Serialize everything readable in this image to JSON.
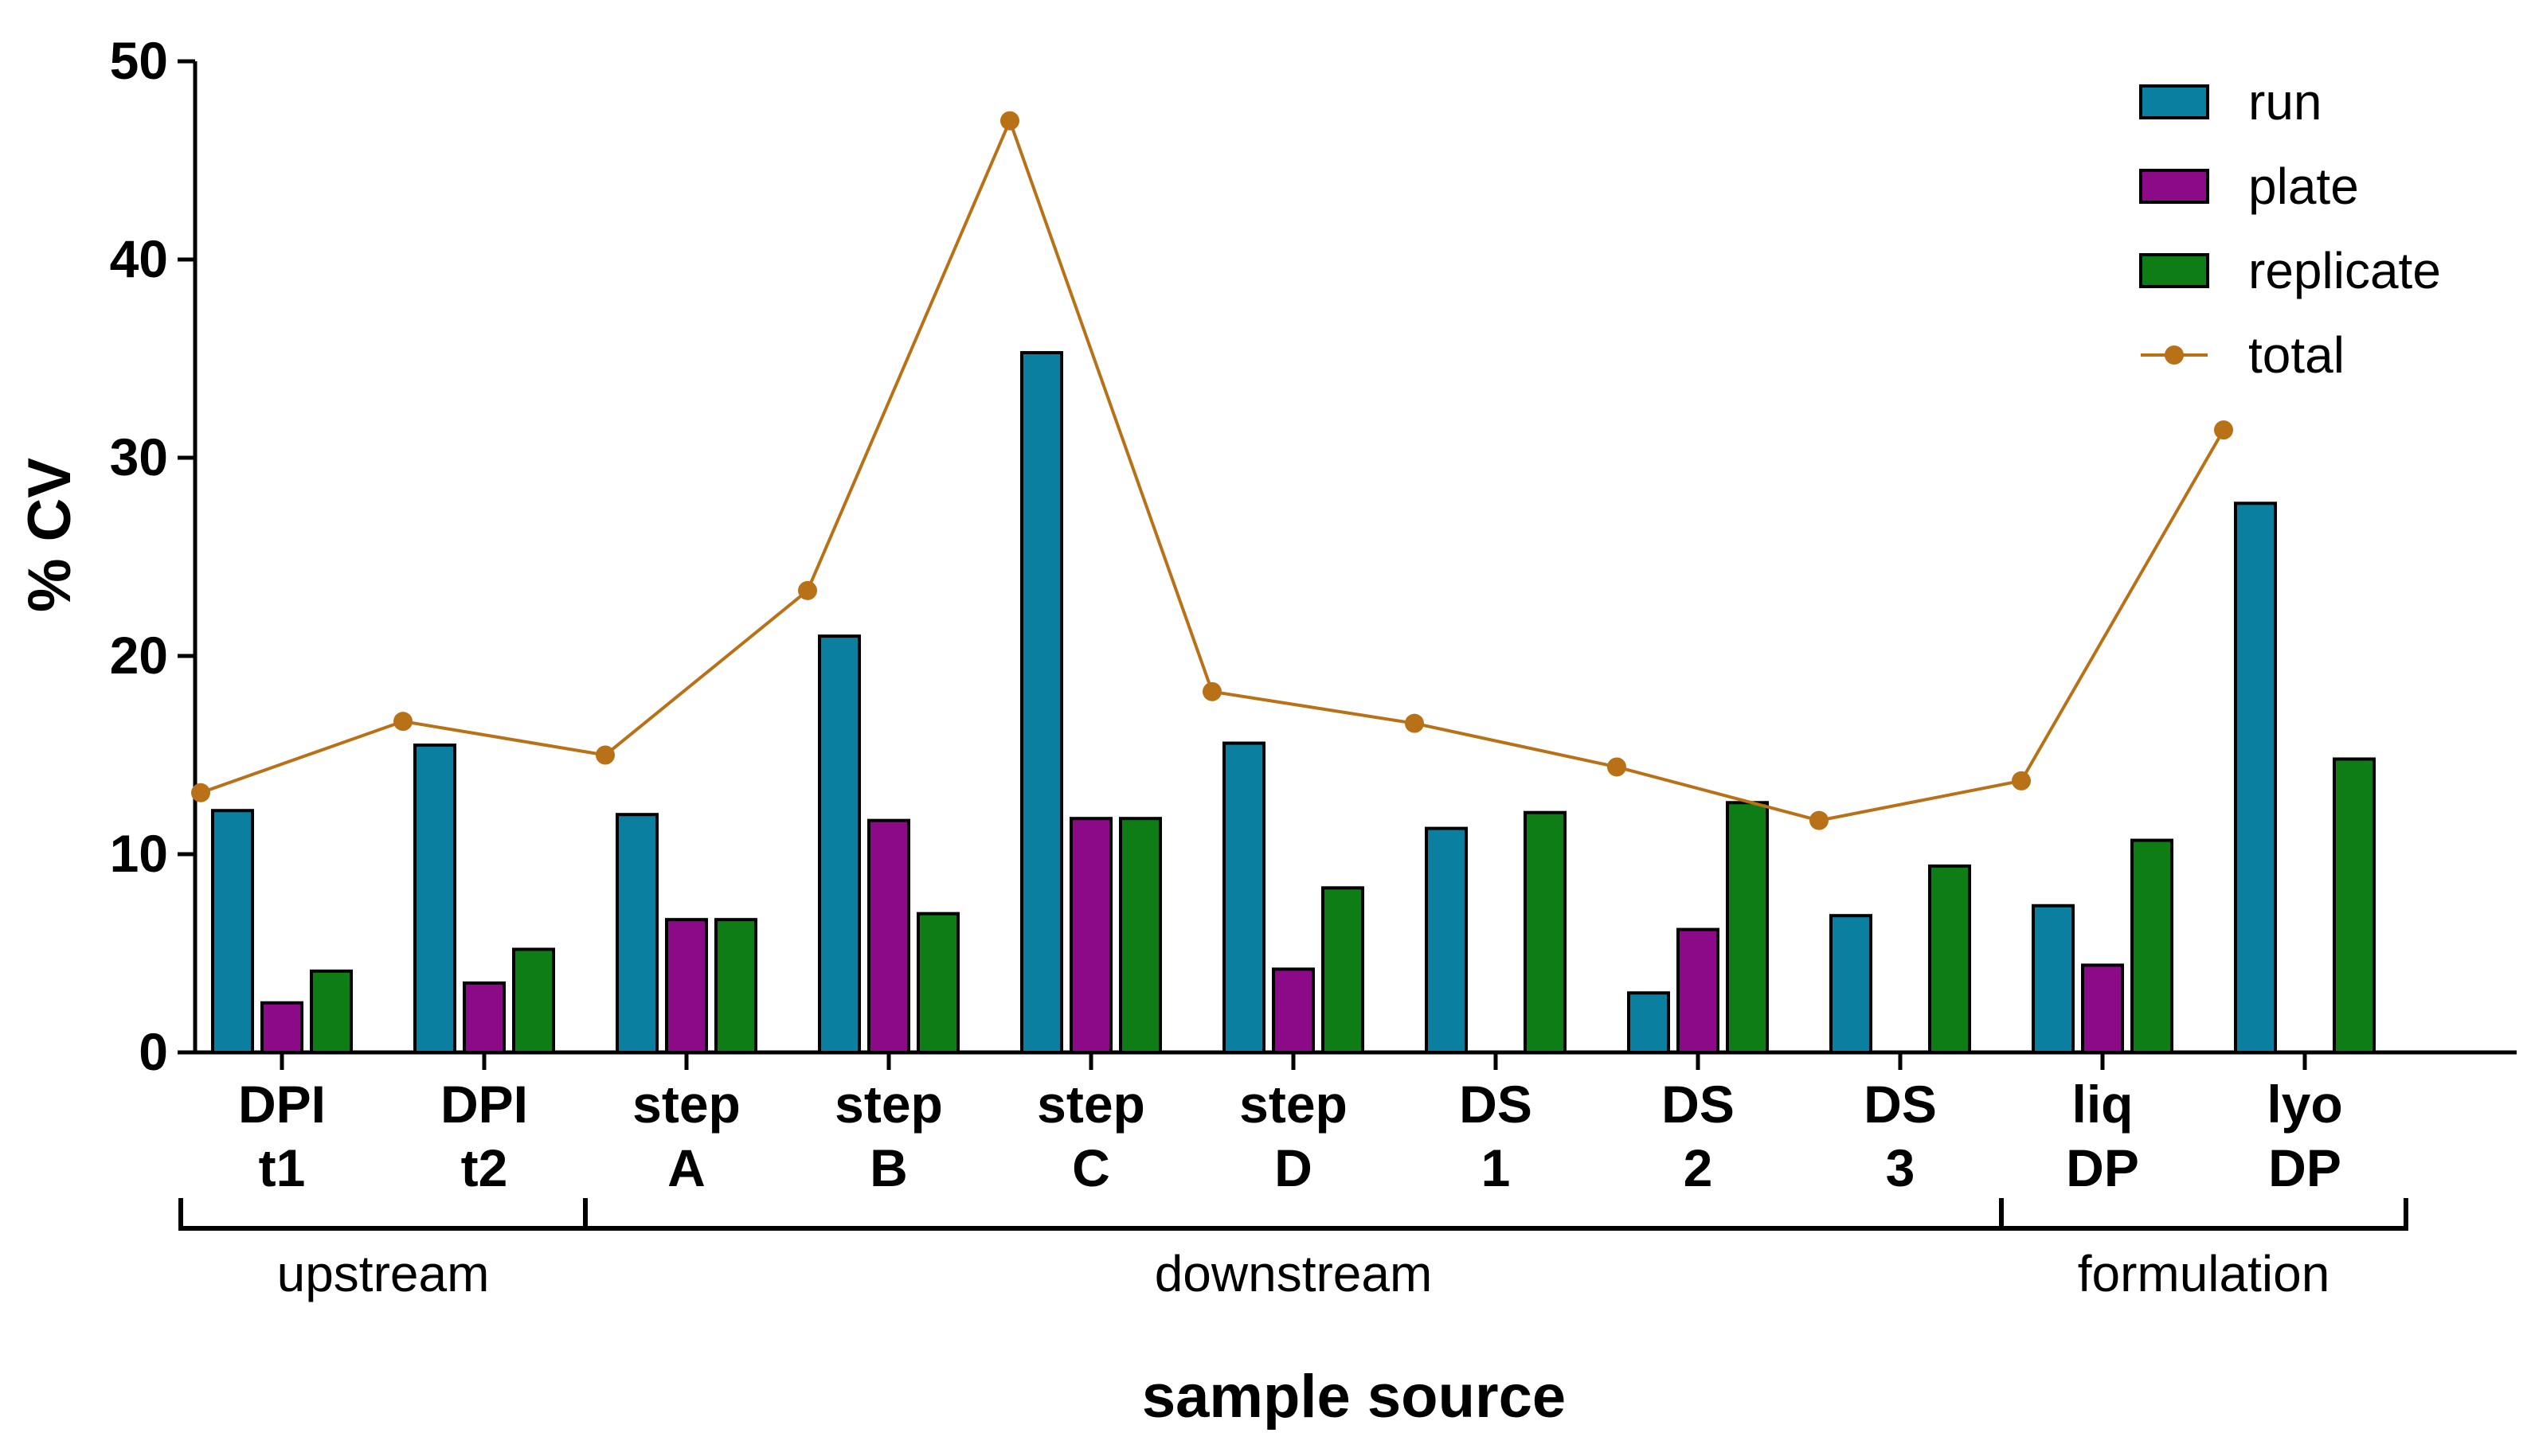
{
  "chart_data": {
    "type": "bar",
    "title": "",
    "xlabel": "sample source",
    "ylabel": "% CV",
    "ylim": [
      0,
      50
    ],
    "yticks": [
      0,
      10,
      20,
      30,
      40,
      50
    ],
    "grid": false,
    "legend_position": "top-right",
    "categories": [
      [
        "DPI",
        "t1"
      ],
      [
        "DPI",
        "t2"
      ],
      [
        "step",
        "A"
      ],
      [
        "step",
        "B"
      ],
      [
        "step",
        "C"
      ],
      [
        "step",
        "D"
      ],
      [
        "DS",
        "1"
      ],
      [
        "DS",
        "2"
      ],
      [
        "DS",
        "3"
      ],
      [
        "liq",
        "DP"
      ],
      [
        "lyo",
        "DP"
      ]
    ],
    "series": [
      {
        "name": "run",
        "type": "bar",
        "color": "#0b7fa0",
        "values": [
          12.2,
          15.5,
          12.0,
          21.0,
          35.3,
          15.6,
          11.3,
          3.0,
          6.9,
          7.4,
          27.7
        ]
      },
      {
        "name": "plate",
        "type": "bar",
        "color": "#8c0a87",
        "values": [
          2.5,
          3.5,
          6.7,
          11.7,
          11.8,
          4.2,
          0,
          6.2,
          0,
          4.4,
          0
        ]
      },
      {
        "name": "replicate",
        "type": "bar",
        "color": "#0e7d16",
        "values": [
          4.1,
          5.2,
          6.7,
          7.0,
          11.8,
          8.3,
          12.1,
          12.6,
          9.4,
          10.7,
          14.8
        ]
      },
      {
        "name": "total",
        "type": "line",
        "color": "#b87116",
        "values": [
          13.1,
          16.7,
          15.0,
          23.3,
          47.0,
          18.2,
          16.6,
          14.4,
          11.7,
          13.7,
          31.4
        ]
      }
    ],
    "groups": [
      {
        "label": "upstream",
        "from": 0,
        "to": 1
      },
      {
        "label": "downstream",
        "from": 2,
        "to": 8
      },
      {
        "label": "formulation",
        "from": 9,
        "to": 10
      }
    ]
  }
}
